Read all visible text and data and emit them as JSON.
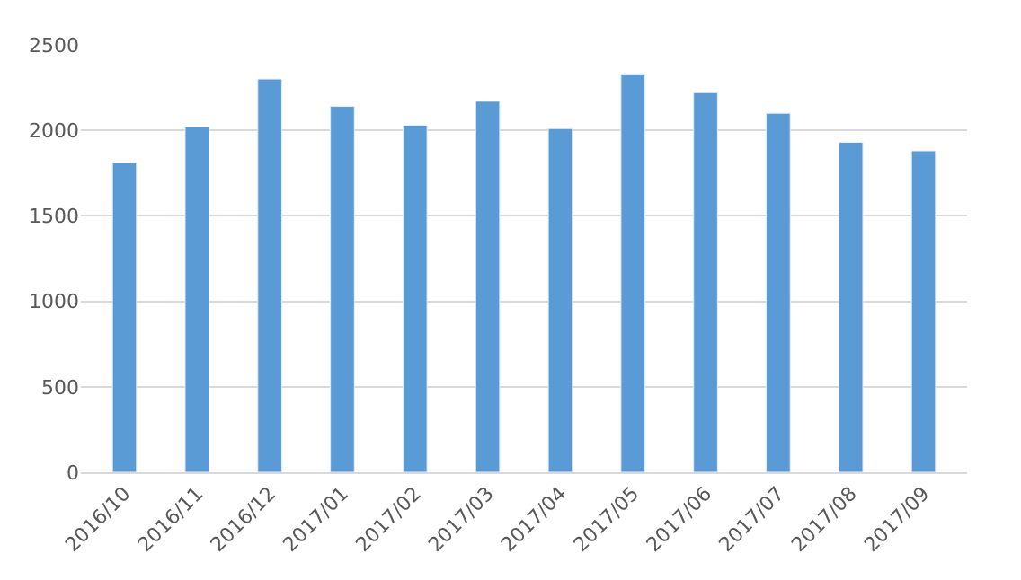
{
  "chart_data": {
    "type": "bar",
    "categories": [
      "2016/10",
      "2016/11",
      "2016/12",
      "2017/01",
      "2017/02",
      "2017/03",
      "2017/04",
      "2017/05",
      "2017/06",
      "2017/07",
      "2017/08",
      "2017/09"
    ],
    "values": [
      1810,
      2020,
      2300,
      2140,
      2030,
      2170,
      2010,
      2330,
      2220,
      2100,
      1930,
      1880
    ],
    "color": "#5b9bd5",
    "ylim": [
      0,
      2500
    ],
    "yticks": [
      0,
      500,
      1000,
      1500,
      2000,
      2500
    ],
    "grid": "y"
  }
}
